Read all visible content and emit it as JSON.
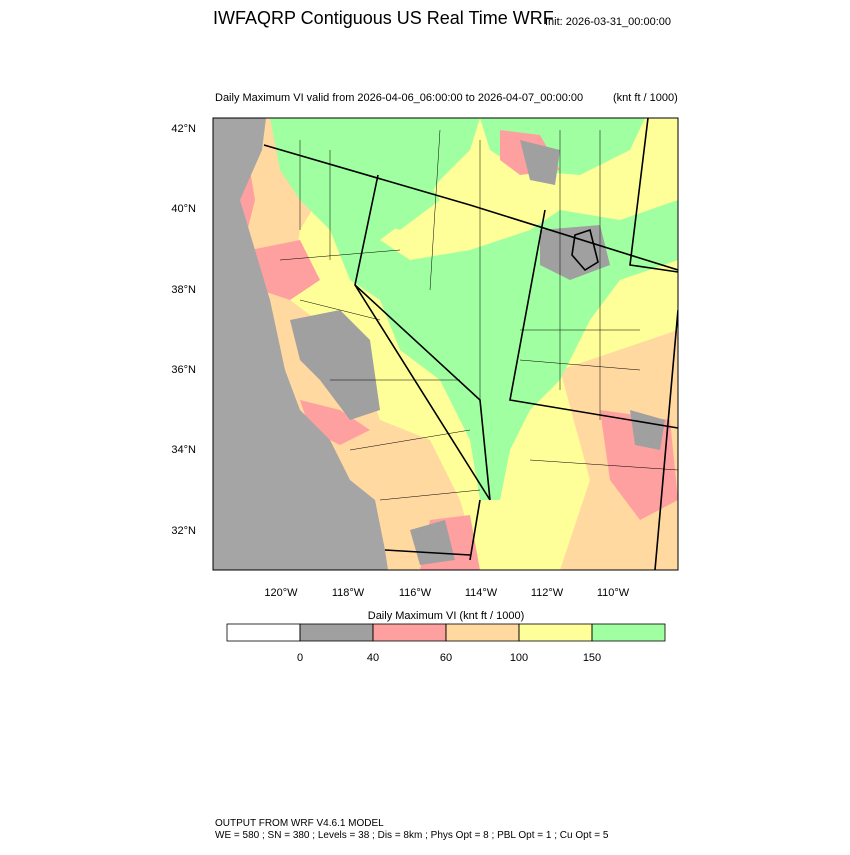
{
  "header": {
    "title": "IWFAQRP Contiguous US Real Time WRF",
    "init": "Init: 2026-03-31_00:00:00"
  },
  "map": {
    "subtitle": "Daily Maximum VI valid from 2026-04-06_06:00:00 to 2026-04-07_00:00:00",
    "units": "(knt ft / 1000)",
    "lat_labels": [
      "42°N",
      "40°N",
      "38°N",
      "36°N",
      "34°N",
      "32°N"
    ],
    "lon_labels": [
      "120°W",
      "118°W",
      "116°W",
      "114°W",
      "112°W",
      "110°W"
    ]
  },
  "colorbar": {
    "title": "Daily Maximum VI  (knt ft / 1000)",
    "levels": [
      0,
      40,
      60,
      100,
      150
    ],
    "colors": [
      "#ffffff",
      "#a0a0a0",
      "#ffa0a0",
      "#ffd9a0",
      "#ffff99",
      "#a0ffa0"
    ]
  },
  "footer": {
    "line1": "OUTPUT FROM WRF V4.6.1 MODEL",
    "line2": "WE = 580 ; SN = 380 ; Levels = 38 ; Dis = 8km ; Phys Opt = 8 ; PBL Opt = 1 ; Cu Opt = 5"
  }
}
